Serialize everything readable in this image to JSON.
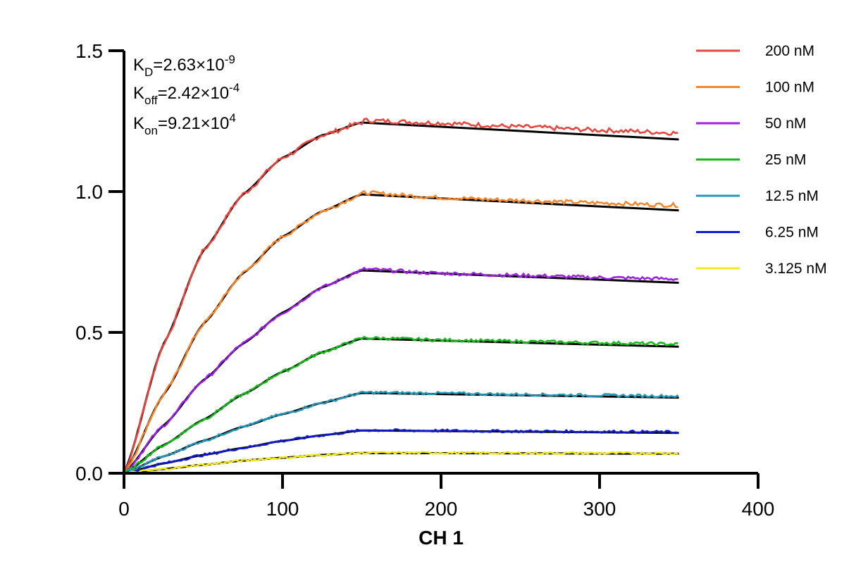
{
  "chart_data": {
    "type": "line",
    "xlabel": "CH 1",
    "ylabel": "",
    "xlim": [
      0,
      400
    ],
    "ylim": [
      0,
      1.5
    ],
    "xticks": [
      "0",
      "100",
      "200",
      "300",
      "400"
    ],
    "yticks": [
      "0.0",
      "0.5",
      "1.0",
      "1.5"
    ],
    "grid": false,
    "legend_position": "top-right",
    "annotations": {
      "kd": {
        "base": "K",
        "sub": "D",
        "mid": "=2.63×10",
        "sup": "-9"
      },
      "koff": {
        "base": "K",
        "sub": "off",
        "mid": "=2.42×10",
        "sup": "-4"
      },
      "kon": {
        "base": "K",
        "sub": "on",
        "mid": "=9.21×10",
        "sup": "4"
      }
    },
    "association_end": 150,
    "x_end": 350,
    "series": [
      {
        "name": "200 nM",
        "color": "#e8463e",
        "plateau": 1.245,
        "end": 1.2,
        "data": [
          [
            0,
            0
          ],
          [
            25,
            0.46
          ],
          [
            50,
            0.79
          ],
          [
            75,
            0.99
          ],
          [
            100,
            1.12
          ],
          [
            125,
            1.2
          ],
          [
            150,
            1.245
          ],
          [
            200,
            1.235
          ],
          [
            250,
            1.222
          ],
          [
            300,
            1.21
          ],
          [
            350,
            1.2
          ]
        ]
      },
      {
        "name": "100 nM",
        "color": "#f5862a",
        "plateau": 0.99,
        "end": 0.945,
        "data": [
          [
            0,
            0
          ],
          [
            25,
            0.28
          ],
          [
            50,
            0.53
          ],
          [
            75,
            0.71
          ],
          [
            100,
            0.84
          ],
          [
            125,
            0.93
          ],
          [
            150,
            0.99
          ],
          [
            200,
            0.972
          ],
          [
            250,
            0.962
          ],
          [
            300,
            0.953
          ],
          [
            350,
            0.945
          ]
        ]
      },
      {
        "name": "50 nM",
        "color": "#9b22e0",
        "plateau": 0.72,
        "end": 0.685,
        "data": [
          [
            0,
            0
          ],
          [
            25,
            0.17
          ],
          [
            50,
            0.33
          ],
          [
            75,
            0.46
          ],
          [
            100,
            0.57
          ],
          [
            125,
            0.66
          ],
          [
            150,
            0.72
          ],
          [
            200,
            0.705
          ],
          [
            250,
            0.698
          ],
          [
            300,
            0.69
          ],
          [
            350,
            0.685
          ]
        ]
      },
      {
        "name": "25 nM",
        "color": "#19b81c",
        "plateau": 0.478,
        "end": 0.455,
        "data": [
          [
            0,
            0
          ],
          [
            25,
            0.1
          ],
          [
            50,
            0.19
          ],
          [
            75,
            0.28
          ],
          [
            100,
            0.36
          ],
          [
            125,
            0.43
          ],
          [
            150,
            0.478
          ],
          [
            200,
            0.47
          ],
          [
            250,
            0.465
          ],
          [
            300,
            0.46
          ],
          [
            350,
            0.455
          ]
        ]
      },
      {
        "name": "12.5 nM",
        "color": "#2598b8",
        "plateau": 0.285,
        "end": 0.272,
        "data": [
          [
            0,
            0
          ],
          [
            25,
            0.06
          ],
          [
            50,
            0.115
          ],
          [
            75,
            0.165
          ],
          [
            100,
            0.21
          ],
          [
            125,
            0.25
          ],
          [
            150,
            0.285
          ],
          [
            200,
            0.282
          ],
          [
            250,
            0.278
          ],
          [
            300,
            0.275
          ],
          [
            350,
            0.272
          ]
        ]
      },
      {
        "name": "6.25 nM",
        "color": "#0f1bd1",
        "plateau": 0.152,
        "end": 0.145,
        "data": [
          [
            0,
            0
          ],
          [
            25,
            0.035
          ],
          [
            50,
            0.065
          ],
          [
            75,
            0.09
          ],
          [
            100,
            0.115
          ],
          [
            125,
            0.135
          ],
          [
            150,
            0.152
          ],
          [
            200,
            0.15
          ],
          [
            250,
            0.148
          ],
          [
            300,
            0.147
          ],
          [
            350,
            0.145
          ]
        ]
      },
      {
        "name": "3.125 nM",
        "color": "#f2ea1c",
        "plateau": 0.072,
        "end": 0.07,
        "data": [
          [
            0,
            0
          ],
          [
            25,
            0.015
          ],
          [
            50,
            0.03
          ],
          [
            75,
            0.045
          ],
          [
            100,
            0.055
          ],
          [
            125,
            0.065
          ],
          [
            150,
            0.072
          ],
          [
            200,
            0.072
          ],
          [
            250,
            0.071
          ],
          [
            300,
            0.071
          ],
          [
            350,
            0.07
          ]
        ]
      }
    ]
  }
}
